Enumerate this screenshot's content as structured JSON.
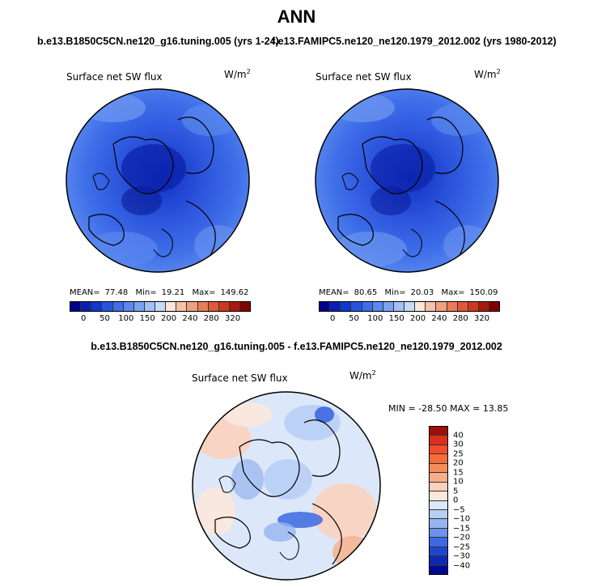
{
  "title": "ANN",
  "panels": {
    "case1": {
      "title": "b.e13.B1850C5CN.ne120_g16.tuning.005 (yrs 1-24)",
      "variable": "Surface net SW flux",
      "units": "W/m",
      "units_sup": "2",
      "mean_label": "MEAN=",
      "mean": "77.48",
      "min_label": "Min=",
      "min": "19.21",
      "max_label": "Max=",
      "max": "149.62"
    },
    "case2": {
      "title": "f.e13.FAMIPC5.ne120_ne120.1979_2012.002 (yrs 1980-2012)",
      "variable": "Surface net SW flux",
      "units": "W/m",
      "units_sup": "2",
      "mean_label": "MEAN=",
      "mean": "80.65",
      "min_label": "Min=",
      "min": "20.03",
      "max_label": "Max=",
      "max": "150.09"
    },
    "diff": {
      "title": "b.e13.B1850C5CN.ne120_g16.tuning.005 - f.e13.FAMIPC5.ne120_ne120.1979_2012.002",
      "variable": "Surface net SW flux",
      "units": "W/m",
      "units_sup": "2",
      "minmax": "MIN = -28.50 MAX =  13.85"
    }
  },
  "colorbar_abs": {
    "labels": [
      "0",
      "50",
      "100",
      "150",
      "200",
      "240",
      "280",
      "320"
    ],
    "colors": [
      "#00008b",
      "#0a1fb0",
      "#1038cc",
      "#2554e0",
      "#3e6ee8",
      "#5a88ee",
      "#7aa2f2",
      "#a2c0f6",
      "#c8daf9",
      "#fbe6d6",
      "#f5c2a6",
      "#f0a07e",
      "#ea7c58",
      "#e05a36",
      "#cc3a1e",
      "#a81a10",
      "#800000"
    ]
  },
  "colorbar_diff": {
    "labels": [
      "40",
      "30",
      "25",
      "20",
      "15",
      "10",
      "5",
      "0",
      "−5",
      "−10",
      "−15",
      "−20",
      "−25",
      "−30",
      "−40"
    ],
    "colors": [
      "#a00f0a",
      "#d8301c",
      "#f04e28",
      "#f56c3a",
      "#f78c5a",
      "#f8ae88",
      "#fad2bc",
      "#fbe8dc",
      "#dce8f9",
      "#b8cef5",
      "#96b4f0",
      "#6c92ea",
      "#3d68e0",
      "#1f46d0",
      "#1028b0",
      "#000890"
    ]
  }
}
